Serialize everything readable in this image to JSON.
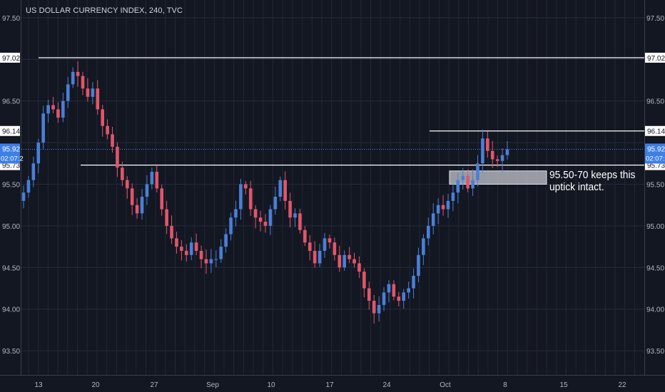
{
  "chart_data": {
    "type": "candlestick",
    "title": "US DOLLAR CURRENCY INDEX, 240, TVC",
    "interval": "240",
    "y_ticks": [
      93.5,
      94.0,
      94.5,
      95.0,
      95.5,
      96.5,
      97.5
    ],
    "y_tick_labels": [
      "93.50",
      "94.00",
      "94.50",
      "95.00",
      "95.50",
      "96.50",
      "97.50"
    ],
    "x_tick_labels": [
      "13",
      "20",
      "27",
      "Sep",
      "10",
      "17",
      "24",
      "Oct",
      "8",
      "15",
      "22"
    ],
    "ylim": [
      93.2,
      97.65
    ],
    "horizontal_levels": [
      {
        "label": "97.02",
        "value": 97.02
      },
      {
        "label": "96.14",
        "value": 96.14
      },
      {
        "label": "95.73",
        "value": 95.73
      }
    ],
    "current_price": {
      "label": "95.92",
      "value": 95.92,
      "countdown": "02:07:2"
    },
    "support_zone": {
      "low": 95.5,
      "high": 95.58
    },
    "annotation": [
      "95.50-70 keeps this",
      "uptick intact."
    ],
    "series": [
      {
        "name": "close",
        "values": [
          95.4,
          95.55,
          95.75,
          96.0,
          96.35,
          96.45,
          96.4,
          96.3,
          96.5,
          96.7,
          96.85,
          96.8,
          96.65,
          96.55,
          96.65,
          96.4,
          96.2,
          96.1,
          95.95,
          95.7,
          95.55,
          95.45,
          95.25,
          95.15,
          95.35,
          95.5,
          95.65,
          95.45,
          95.2,
          95.0,
          94.85,
          94.75,
          94.7,
          94.65,
          94.8,
          94.7,
          94.6,
          94.55,
          94.6,
          94.6,
          94.75,
          94.9,
          95.1,
          95.2,
          95.5,
          95.45,
          95.2,
          95.1,
          95.05,
          95.0,
          95.2,
          95.35,
          95.55,
          95.3,
          95.1,
          95.15,
          94.95,
          94.8,
          94.7,
          94.55,
          94.7,
          94.85,
          94.8,
          94.65,
          94.5,
          94.65,
          94.6,
          94.55,
          94.45,
          94.25,
          94.1,
          93.95,
          94.05,
          94.2,
          94.3,
          94.15,
          94.1,
          94.2,
          94.25,
          94.4,
          94.65,
          94.85,
          95.0,
          95.15,
          95.25,
          95.2,
          95.3,
          95.4,
          95.55,
          95.6,
          95.45,
          95.55,
          95.75,
          96.05,
          95.9,
          95.8,
          95.78,
          95.85,
          95.92
        ]
      }
    ]
  }
}
